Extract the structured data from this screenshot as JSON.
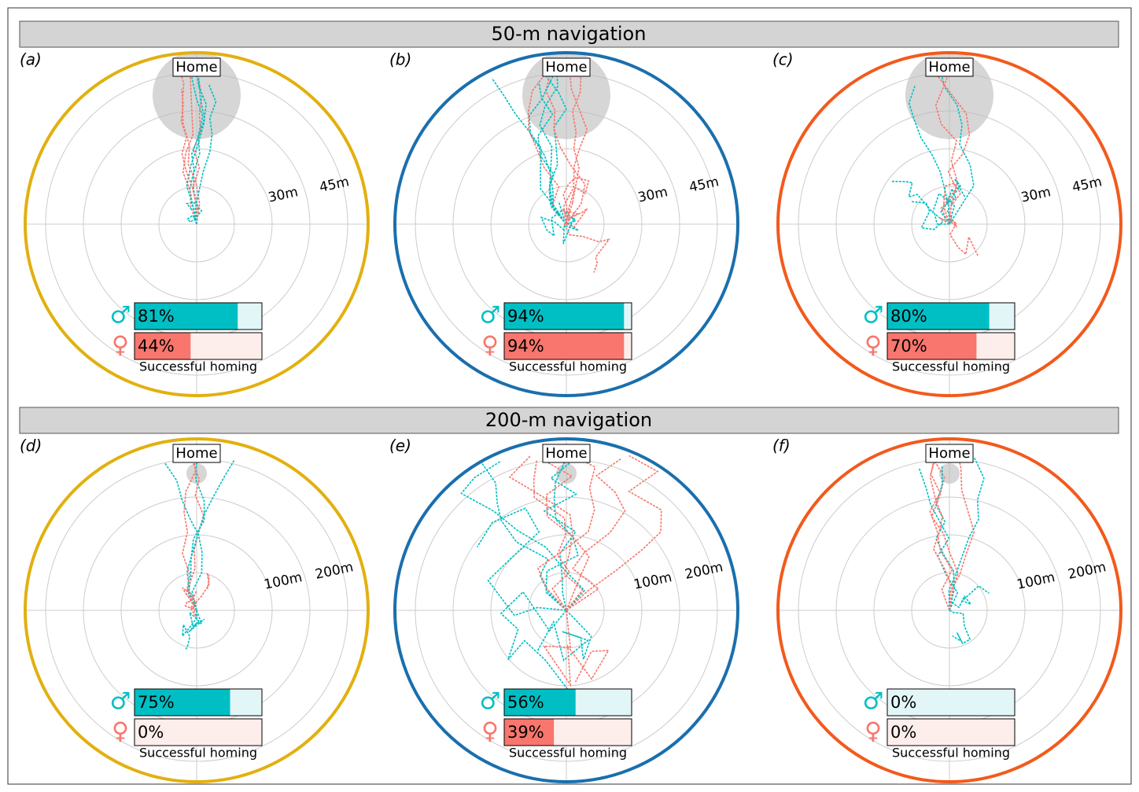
{
  "sections": [
    {
      "title": "50-m navigation",
      "xlim": [
        0,
        100
      ],
      "panels": [
        {
          "label": "(a)",
          "color": "#e2b00f",
          "home": "Home",
          "rings": [
            "30m",
            "45m"
          ],
          "caption": "Successful homing",
          "male": {
            "symbol": "♂",
            "value": 81,
            "value_label": "81%"
          },
          "female": {
            "symbol": "♀",
            "value": 44,
            "value_label": "44%"
          }
        },
        {
          "label": "(b)",
          "color": "#1a6fad",
          "home": "Home",
          "rings": [
            "30m",
            "45m"
          ],
          "caption": "Successful homing",
          "male": {
            "symbol": "♂",
            "value": 94,
            "value_label": "94%"
          },
          "female": {
            "symbol": "♀",
            "value": 94,
            "value_label": "94%"
          }
        },
        {
          "label": "(c)",
          "color": "#f25a1c",
          "home": "Home",
          "rings": [
            "30m",
            "45m"
          ],
          "caption": "Successful homing",
          "male": {
            "symbol": "♂",
            "value": 80,
            "value_label": "80%"
          },
          "female": {
            "symbol": "♀",
            "value": 70,
            "value_label": "70%"
          }
        }
      ]
    },
    {
      "title": "200-m navigation",
      "xlim": [
        0,
        100
      ],
      "panels": [
        {
          "label": "(d)",
          "color": "#e2b00f",
          "home": "Home",
          "rings": [
            "100m",
            "200m"
          ],
          "caption": "Successful homing",
          "male": {
            "symbol": "♂",
            "value": 75,
            "value_label": "75%"
          },
          "female": {
            "symbol": "♀",
            "value": 0,
            "value_label": "0%"
          }
        },
        {
          "label": "(e)",
          "color": "#1a6fad",
          "home": "Home",
          "rings": [
            "100m",
            "200m"
          ],
          "caption": "Successful homing",
          "male": {
            "symbol": "♂",
            "value": 56,
            "value_label": "56%"
          },
          "female": {
            "symbol": "♀",
            "value": 39,
            "value_label": "39%"
          }
        },
        {
          "label": "(f)",
          "color": "#f25a1c",
          "home": "Home",
          "rings": [
            "100m",
            "200m"
          ],
          "caption": "Successful homing",
          "male": {
            "symbol": "♂",
            "value": 0,
            "value_label": "0%"
          },
          "female": {
            "symbol": "♀",
            "value": 0,
            "value_label": "0%"
          }
        }
      ]
    }
  ]
}
